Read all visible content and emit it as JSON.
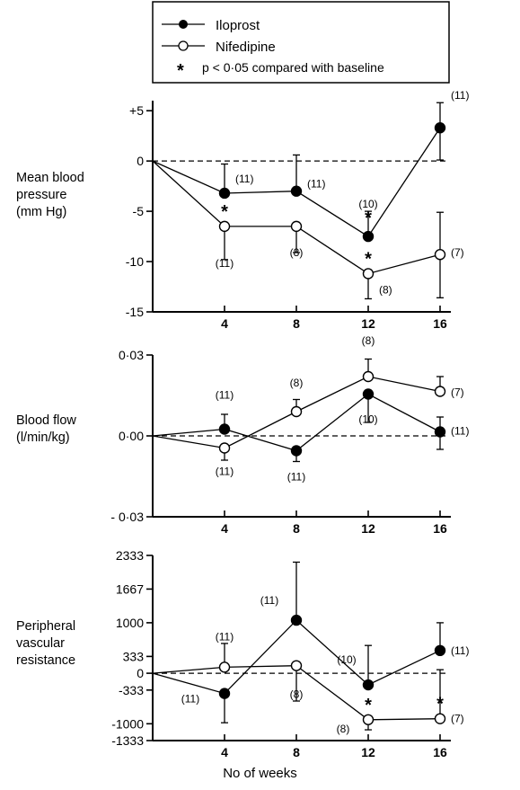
{
  "legend": {
    "iloprost": "Iloprost",
    "nifedipine": "Nifedipine",
    "sig_marker": "*",
    "sig_label": "p < 0·05 compared with baseline"
  },
  "xaxis": {
    "label": "No of weeks",
    "ticks": [
      "4",
      "8",
      "12",
      "16"
    ]
  },
  "chart_data": [
    {
      "type": "line",
      "ylabel": "Mean blood\npressure\n(mm Hg)",
      "x": [
        0,
        4,
        8,
        12,
        16
      ],
      "ylim": [
        -15,
        6
      ],
      "yticks": [
        5,
        0,
        -5,
        -10,
        -15
      ],
      "ytick_labels": [
        "+5",
        "0",
        "-5",
        "-10",
        "-15"
      ],
      "baseline": 0,
      "series": [
        {
          "name": "Iloprost",
          "marker": "filled",
          "values": [
            0,
            -3.2,
            -3.0,
            -7.5,
            3.3
          ],
          "err_up": [
            null,
            2.9,
            3.6,
            2.5,
            2.5
          ],
          "err_down": [
            null,
            null,
            null,
            null,
            3.2
          ],
          "n_labels": [
            "",
            "(11)",
            "(11)",
            "(10)",
            "(11)"
          ],
          "sig": [
            false,
            false,
            false,
            true,
            false
          ]
        },
        {
          "name": "Nifedipine",
          "marker": "open",
          "values": [
            0,
            -6.5,
            -6.5,
            -11.2,
            -9.3
          ],
          "err_up": [
            null,
            null,
            null,
            null,
            4.2
          ],
          "err_down": [
            null,
            3.3,
            2.6,
            2.5,
            4.3
          ],
          "n_labels": [
            "",
            "(11)",
            "(8)",
            "(8)",
            "(7)"
          ],
          "sig": [
            false,
            true,
            false,
            true,
            false
          ]
        }
      ]
    },
    {
      "type": "line",
      "ylabel": "Blood flow\n(l/min/kg)",
      "x": [
        0,
        4,
        8,
        12,
        16
      ],
      "ylim": [
        -0.03,
        0.03
      ],
      "yticks": [
        0.03,
        0,
        -0.03
      ],
      "ytick_labels": [
        "0·03",
        "0·00",
        "- 0·03"
      ],
      "baseline": 0,
      "series": [
        {
          "name": "Iloprost",
          "marker": "filled",
          "values": [
            0,
            0.0025,
            -0.0055,
            0.0155,
            0.0015
          ],
          "err_up": [
            null,
            0.0055,
            null,
            null,
            0.0055
          ],
          "err_down": [
            null,
            null,
            0.004,
            0.0105,
            0.0065
          ],
          "n_labels": [
            "",
            "(11)",
            "(11)",
            "(10)",
            "(11)"
          ],
          "sig": [
            false,
            false,
            false,
            false,
            false
          ]
        },
        {
          "name": "Nifedipine",
          "marker": "open",
          "values": [
            0,
            -0.0045,
            0.009,
            0.022,
            0.0165
          ],
          "err_up": [
            null,
            null,
            0.0045,
            0.0065,
            0.0055
          ],
          "err_down": [
            null,
            0.0045,
            null,
            null,
            null
          ],
          "n_labels": [
            "",
            "(11)",
            "(8)",
            "(8)",
            "(7)"
          ],
          "sig": [
            false,
            false,
            false,
            false,
            false
          ]
        }
      ]
    },
    {
      "type": "line",
      "ylabel": "Peripheral\nvascular\nresistance",
      "x": [
        0,
        4,
        8,
        12,
        16
      ],
      "ylim": [
        -1333,
        2333
      ],
      "yticks": [
        2333,
        1667,
        1000,
        333,
        0,
        -333,
        -1000,
        -1333
      ],
      "ytick_labels": [
        "2333",
        "1667",
        "1000",
        "333",
        "0",
        "-333",
        "-1000",
        "-1333"
      ],
      "baseline": 0,
      "series": [
        {
          "name": "Iloprost",
          "marker": "filled",
          "values": [
            0,
            -400,
            1050,
            -230,
            450
          ],
          "err_up": [
            null,
            null,
            1150,
            780,
            550
          ],
          "err_down": [
            null,
            580,
            null,
            null,
            null
          ],
          "n_labels": [
            "",
            "(11)",
            "(11)",
            "(10)",
            "(11)"
          ],
          "sig": [
            false,
            false,
            false,
            false,
            false
          ]
        },
        {
          "name": "Nifedipine",
          "marker": "open",
          "values": [
            0,
            120,
            150,
            -920,
            -900
          ],
          "err_up": [
            null,
            470,
            null,
            null,
            970
          ],
          "err_down": [
            null,
            null,
            700,
            200,
            null
          ],
          "n_labels": [
            "",
            "(11)",
            "(8)",
            "(8)",
            "(7)"
          ],
          "sig": [
            false,
            false,
            false,
            true,
            true
          ]
        }
      ]
    }
  ]
}
